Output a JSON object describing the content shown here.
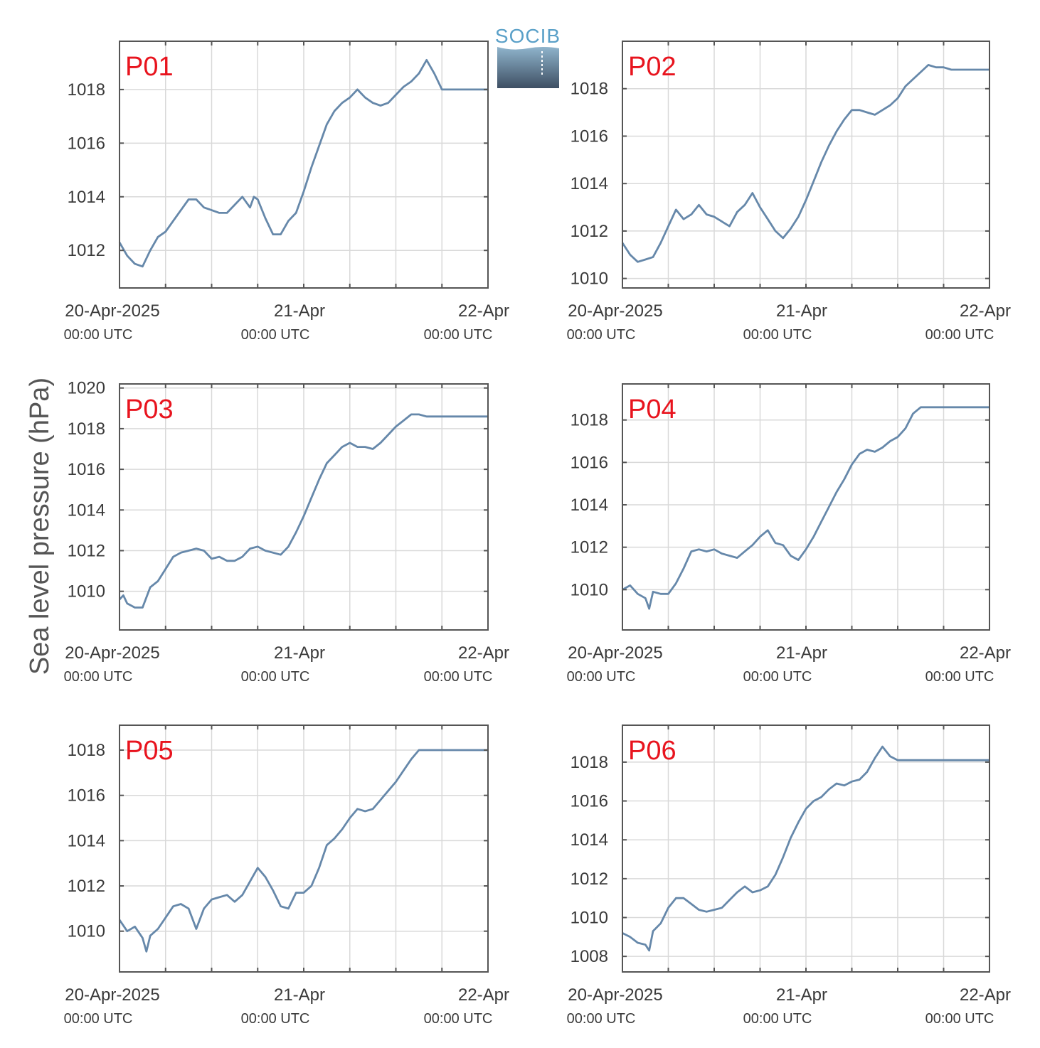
{
  "figure": {
    "ylabel": "Sea level pressure (hPa)",
    "logo_text": "SOCIB",
    "colors": {
      "line": "#6688aa",
      "panel_label": "#e8141e",
      "grid": "#d9d9d9",
      "axis": "#555555"
    }
  },
  "chart_data": [
    {
      "type": "line",
      "panel_label": "P01",
      "x_ticks": [
        "20-Apr-2025",
        "21-Apr",
        "22-Apr"
      ],
      "x_tick_utc": [
        "00:00 UTC",
        "00:00 UTC",
        "00:00 UTC"
      ],
      "xlim_hours": [
        0,
        48
      ],
      "ylim": [
        1010.6,
        1019.8
      ],
      "y_ticks": [
        1012,
        1014,
        1016,
        1018
      ],
      "grid": true,
      "series": [
        {
          "x": [
            0,
            1,
            2,
            3,
            4,
            5,
            6,
            7,
            8,
            9,
            10,
            11,
            12,
            13,
            14,
            15,
            16,
            17,
            17.5,
            18,
            19,
            20,
            21,
            22,
            23,
            24,
            25,
            26,
            27,
            28,
            29,
            30,
            31,
            32,
            33,
            34,
            35,
            36,
            37,
            38,
            39,
            40,
            41,
            42,
            43,
            44,
            45,
            46,
            47,
            48
          ],
          "y": [
            1012.3,
            1011.8,
            1011.5,
            1011.4,
            1012.0,
            1012.5,
            1012.7,
            1013.1,
            1013.5,
            1013.9,
            1013.9,
            1013.6,
            1013.5,
            1013.4,
            1013.4,
            1013.7,
            1014.0,
            1013.6,
            1014.0,
            1013.9,
            1013.2,
            1012.6,
            1012.6,
            1013.1,
            1013.4,
            1014.2,
            1015.1,
            1015.9,
            1016.7,
            1017.2,
            1017.5,
            1017.7,
            1018.0,
            1017.7,
            1017.5,
            1017.4,
            1017.5,
            1017.8,
            1018.1,
            1018.3,
            1018.6,
            1019.1,
            1018.6,
            1018.0,
            1018.0,
            1018.0,
            1018.0,
            1018.0,
            1018.0,
            1018.0
          ]
        }
      ]
    },
    {
      "type": "line",
      "panel_label": "P02",
      "x_ticks": [
        "20-Apr-2025",
        "21-Apr",
        "22-Apr"
      ],
      "x_tick_utc": [
        "00:00 UTC",
        "00:00 UTC",
        "00:00 UTC"
      ],
      "xlim_hours": [
        0,
        48
      ],
      "ylim": [
        1009.6,
        1020.0
      ],
      "y_ticks": [
        1010,
        1012,
        1014,
        1016,
        1018
      ],
      "grid": true,
      "series": [
        {
          "x": [
            0,
            1,
            2,
            3,
            4,
            5,
            6,
            7,
            8,
            9,
            10,
            11,
            12,
            13,
            14,
            15,
            16,
            17,
            18,
            19,
            20,
            21,
            22,
            23,
            24,
            25,
            26,
            27,
            28,
            29,
            30,
            31,
            32,
            33,
            34,
            35,
            36,
            37,
            38,
            39,
            40,
            41,
            42,
            43,
            44,
            45,
            46,
            47,
            48
          ],
          "y": [
            1011.5,
            1011.0,
            1010.7,
            1010.8,
            1010.9,
            1011.5,
            1012.2,
            1012.9,
            1012.5,
            1012.7,
            1013.1,
            1012.7,
            1012.6,
            1012.4,
            1012.2,
            1012.8,
            1013.1,
            1013.6,
            1013.0,
            1012.5,
            1012.0,
            1011.7,
            1012.1,
            1012.6,
            1013.3,
            1014.1,
            1014.9,
            1015.6,
            1016.2,
            1016.7,
            1017.1,
            1017.1,
            1017.0,
            1016.9,
            1017.1,
            1017.3,
            1017.6,
            1018.1,
            1018.4,
            1018.7,
            1019.0,
            1018.9,
            1018.9,
            1018.8,
            1018.8,
            1018.8,
            1018.8,
            1018.8,
            1018.8
          ]
        }
      ]
    },
    {
      "type": "line",
      "panel_label": "P03",
      "x_ticks": [
        "20-Apr-2025",
        "21-Apr",
        "22-Apr"
      ],
      "x_tick_utc": [
        "00:00 UTC",
        "00:00 UTC",
        "00:00 UTC"
      ],
      "xlim_hours": [
        0,
        48
      ],
      "ylim": [
        1008.1,
        1020.2
      ],
      "y_ticks": [
        1010,
        1012,
        1014,
        1016,
        1018,
        1020
      ],
      "grid": true,
      "series": [
        {
          "x": [
            0,
            0.5,
            1,
            2,
            3,
            4,
            5,
            6,
            7,
            8,
            9,
            10,
            11,
            12,
            13,
            14,
            15,
            16,
            17,
            18,
            19,
            20,
            21,
            22,
            23,
            24,
            25,
            26,
            27,
            28,
            29,
            30,
            31,
            32,
            33,
            34,
            35,
            36,
            37,
            38,
            39,
            40,
            41,
            42,
            43,
            44,
            45,
            46,
            47,
            48
          ],
          "y": [
            1009.6,
            1009.8,
            1009.4,
            1009.2,
            1009.2,
            1010.2,
            1010.5,
            1011.1,
            1011.7,
            1011.9,
            1012.0,
            1012.1,
            1012.0,
            1011.6,
            1011.7,
            1011.5,
            1011.5,
            1011.7,
            1012.1,
            1012.2,
            1012.0,
            1011.9,
            1011.8,
            1012.2,
            1012.9,
            1013.7,
            1014.6,
            1015.5,
            1016.3,
            1016.7,
            1017.1,
            1017.3,
            1017.1,
            1017.1,
            1017.0,
            1017.3,
            1017.7,
            1018.1,
            1018.4,
            1018.7,
            1018.7,
            1018.6,
            1018.6,
            1018.6,
            1018.6,
            1018.6,
            1018.6,
            1018.6,
            1018.6,
            1018.6
          ]
        }
      ]
    },
    {
      "type": "line",
      "panel_label": "P04",
      "x_ticks": [
        "20-Apr-2025",
        "21-Apr",
        "22-Apr"
      ],
      "x_tick_utc": [
        "00:00 UTC",
        "00:00 UTC",
        "00:00 UTC"
      ],
      "xlim_hours": [
        0,
        48
      ],
      "ylim": [
        1008.1,
        1019.7
      ],
      "y_ticks": [
        1010,
        1012,
        1014,
        1016,
        1018
      ],
      "grid": true,
      "series": [
        {
          "x": [
            0,
            1,
            2,
            3,
            3.5,
            4,
            5,
            6,
            7,
            8,
            9,
            10,
            11,
            12,
            13,
            14,
            15,
            16,
            17,
            18,
            19,
            20,
            21,
            22,
            23,
            24,
            25,
            26,
            27,
            28,
            29,
            30,
            31,
            32,
            33,
            34,
            35,
            36,
            37,
            38,
            39,
            40,
            41,
            42,
            43,
            44,
            45,
            46,
            47,
            48
          ],
          "y": [
            1010.0,
            1010.2,
            1009.8,
            1009.6,
            1009.1,
            1009.9,
            1009.8,
            1009.8,
            1010.3,
            1011.0,
            1011.8,
            1011.9,
            1011.8,
            1011.9,
            1011.7,
            1011.6,
            1011.5,
            1011.8,
            1012.1,
            1012.5,
            1012.8,
            1012.2,
            1012.1,
            1011.6,
            1011.4,
            1011.9,
            1012.5,
            1013.2,
            1013.9,
            1014.6,
            1015.2,
            1015.9,
            1016.4,
            1016.6,
            1016.5,
            1016.7,
            1017.0,
            1017.2,
            1017.6,
            1018.3,
            1018.6,
            1018.6,
            1018.6,
            1018.6,
            1018.6,
            1018.6,
            1018.6,
            1018.6,
            1018.6,
            1018.6
          ]
        }
      ]
    },
    {
      "type": "line",
      "panel_label": "P05",
      "x_ticks": [
        "20-Apr-2025",
        "21-Apr",
        "22-Apr"
      ],
      "x_tick_utc": [
        "00:00 UTC",
        "00:00 UTC",
        "00:00 UTC"
      ],
      "xlim_hours": [
        0,
        48
      ],
      "ylim": [
        1008.2,
        1019.1
      ],
      "y_ticks": [
        1010,
        1012,
        1014,
        1016,
        1018
      ],
      "grid": true,
      "series": [
        {
          "x": [
            0,
            1,
            2,
            3,
            3.5,
            4,
            5,
            6,
            7,
            8,
            9,
            10,
            11,
            12,
            13,
            14,
            15,
            16,
            17,
            18,
            19,
            20,
            21,
            22,
            23,
            24,
            25,
            26,
            27,
            28,
            29,
            30,
            31,
            32,
            33,
            34,
            35,
            36,
            37,
            38,
            39,
            40,
            41,
            42,
            43,
            44,
            45,
            46,
            47,
            48
          ],
          "y": [
            1010.5,
            1010.0,
            1010.2,
            1009.7,
            1009.1,
            1009.8,
            1010.1,
            1010.6,
            1011.1,
            1011.2,
            1011.0,
            1010.1,
            1011.0,
            1011.4,
            1011.5,
            1011.6,
            1011.3,
            1011.6,
            1012.2,
            1012.8,
            1012.4,
            1011.8,
            1011.1,
            1011.0,
            1011.7,
            1011.7,
            1012.0,
            1012.8,
            1013.8,
            1014.1,
            1014.5,
            1015.0,
            1015.4,
            1015.3,
            1015.4,
            1015.8,
            1016.2,
            1016.6,
            1017.1,
            1017.6,
            1018.0,
            1018.0,
            1018.0,
            1018.0,
            1018.0,
            1018.0,
            1018.0,
            1018.0,
            1018.0,
            1018.0
          ]
        }
      ]
    },
    {
      "type": "line",
      "panel_label": "P06",
      "x_ticks": [
        "20-Apr-2025",
        "21-Apr",
        "22-Apr"
      ],
      "x_tick_utc": [
        "00:00 UTC",
        "00:00 UTC",
        "00:00 UTC"
      ],
      "xlim_hours": [
        0,
        48
      ],
      "ylim": [
        1007.2,
        1019.9
      ],
      "y_ticks": [
        1008,
        1010,
        1012,
        1014,
        1016,
        1018
      ],
      "grid": true,
      "series": [
        {
          "x": [
            0,
            1,
            2,
            3,
            3.5,
            4,
            5,
            6,
            7,
            8,
            9,
            10,
            11,
            12,
            13,
            14,
            15,
            16,
            17,
            18,
            19,
            20,
            21,
            22,
            23,
            24,
            25,
            26,
            27,
            28,
            29,
            30,
            31,
            32,
            33,
            34,
            35,
            36,
            37,
            38,
            39,
            40,
            41,
            42,
            43,
            44,
            45,
            46,
            47,
            48
          ],
          "y": [
            1009.2,
            1009.0,
            1008.7,
            1008.6,
            1008.3,
            1009.3,
            1009.7,
            1010.5,
            1011.0,
            1011.0,
            1010.7,
            1010.4,
            1010.3,
            1010.4,
            1010.5,
            1010.9,
            1011.3,
            1011.6,
            1011.3,
            1011.4,
            1011.6,
            1012.2,
            1013.1,
            1014.1,
            1014.9,
            1015.6,
            1016.0,
            1016.2,
            1016.6,
            1016.9,
            1016.8,
            1017.0,
            1017.1,
            1017.5,
            1018.2,
            1018.8,
            1018.3,
            1018.1,
            1018.1,
            1018.1,
            1018.1,
            1018.1,
            1018.1,
            1018.1,
            1018.1,
            1018.1,
            1018.1,
            1018.1,
            1018.1,
            1018.1
          ]
        }
      ]
    }
  ]
}
